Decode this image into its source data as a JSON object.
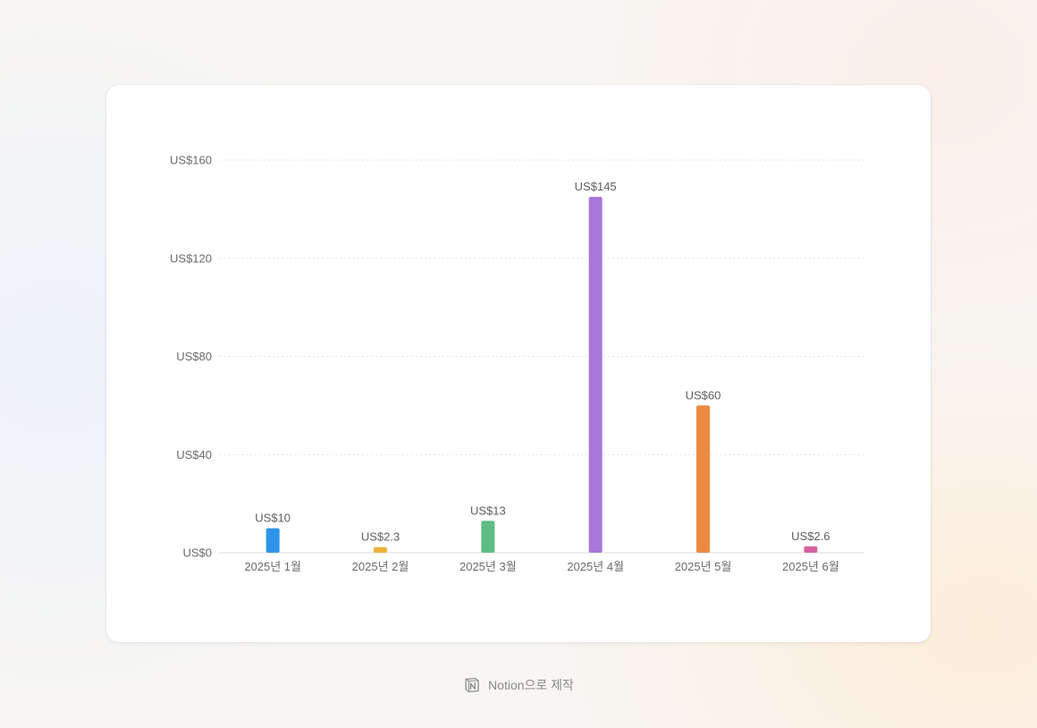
{
  "chart_data": {
    "type": "bar",
    "categories": [
      "2025년 1월",
      "2025년 2월",
      "2025년 3월",
      "2025년 4월",
      "2025년 5월",
      "2025년 6월"
    ],
    "values": [
      10,
      2.3,
      13,
      145,
      60,
      2.6
    ],
    "data_labels": [
      "US$10",
      "US$2.3",
      "US$13",
      "US$145",
      "US$60",
      "US$2.6"
    ],
    "colors": [
      "#2f94e9",
      "#efb13b",
      "#5dbd84",
      "#a878d9",
      "#ec8a42",
      "#d5619e"
    ],
    "y_ticks": [
      0,
      40,
      80,
      120,
      160
    ],
    "y_tick_labels": [
      "US$0",
      "US$40",
      "US$80",
      "US$120",
      "US$160"
    ],
    "ylim": [
      0,
      160
    ],
    "grid": true,
    "legend": "none",
    "title": "",
    "xlabel": "",
    "ylabel": ""
  },
  "footer": {
    "text": "Notion으로 제작",
    "icon": "notion-logo-icon"
  }
}
